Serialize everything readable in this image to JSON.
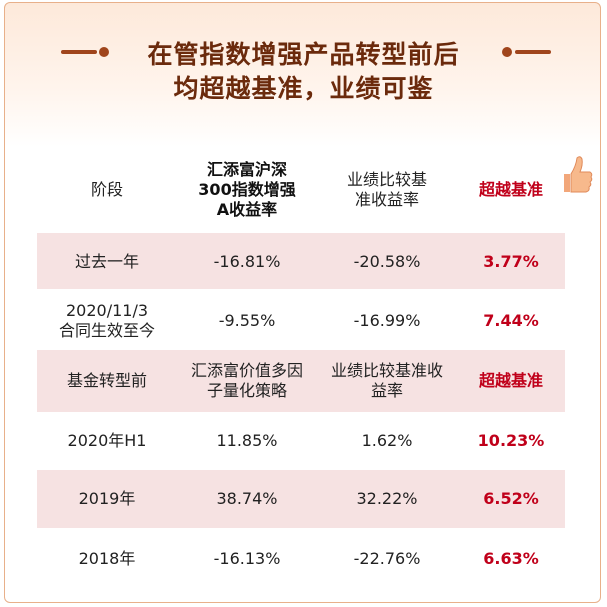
{
  "title": {
    "line1": "在管指数增强产品转型前后",
    "line2": "均超越基准，业绩可鉴"
  },
  "header": {
    "col1": "阶段",
    "col2": "汇添富沪深\n300指数增强\nA收益率",
    "col3": "业绩比较基\n准收益率",
    "col4": "超越基准",
    "col4_icon": "thumbs-up-icon"
  },
  "rows1": [
    {
      "stage": "过去一年",
      "fund": "-16.81%",
      "bench": "-20.58%",
      "excess": "3.77%"
    },
    {
      "stage": "2020/11/3\n合同生效至今",
      "fund": "-9.55%",
      "bench": "-16.99%",
      "excess": "7.44%"
    }
  ],
  "header2": {
    "col1": "基金转型前",
    "col2": "汇添富价值多因\n子量化策略",
    "col3": "业绩比较基准收\n益率",
    "col4": "超越基准"
  },
  "rows2": [
    {
      "stage": "2020年H1",
      "fund": "11.85%",
      "bench": "1.62%",
      "excess": "10.23%"
    },
    {
      "stage": "2019年",
      "fund": "38.74%",
      "bench": "32.22%",
      "excess": "6.52%"
    },
    {
      "stage": "2018年",
      "fund": "-16.13%",
      "bench": "-22.76%",
      "excess": "6.63%"
    }
  ],
  "colors": {
    "accent_red": "#c0001a",
    "title_brown": "#6b2a0c",
    "row_pink": "#f6e2e2"
  }
}
